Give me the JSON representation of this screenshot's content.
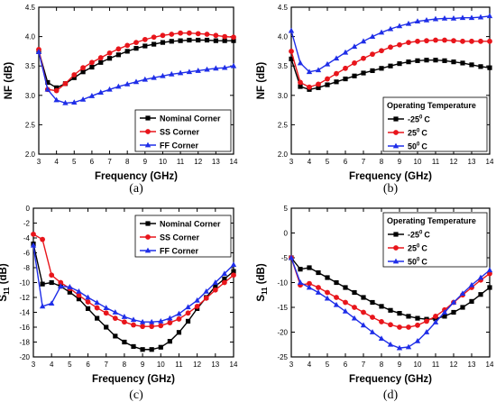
{
  "colors": {
    "black": "#000000",
    "red": "#e8151b",
    "blue": "#1f2ee8"
  },
  "chart_data": [
    {
      "panel": "(a)",
      "type": "line",
      "xlabel": "Frequency (GHz)",
      "ylabel": "NF (dB)",
      "xlim": [
        3,
        14
      ],
      "ylim": [
        2.0,
        4.5
      ],
      "xticks": [
        3,
        4,
        5,
        6,
        7,
        8,
        9,
        10,
        11,
        12,
        13,
        14
      ],
      "yticks": [
        "2.0",
        "2.5",
        "3.0",
        "3.5",
        "4.0",
        "4.5"
      ],
      "legend": {
        "placement": "lower-right",
        "title": "",
        "entries": [
          "Nominal Corner",
          "SS Corner",
          "FF Corner"
        ]
      },
      "series": [
        {
          "name": "Nominal Corner",
          "color": "#000000",
          "marker": "square",
          "x": [
            3,
            3.5,
            4,
            4.5,
            5,
            5.5,
            6,
            6.5,
            7,
            7.5,
            8,
            8.5,
            9,
            9.5,
            10,
            10.5,
            11,
            11.5,
            12,
            12.5,
            13,
            13.5,
            14
          ],
          "y": [
            3.75,
            3.22,
            3.13,
            3.2,
            3.3,
            3.4,
            3.48,
            3.56,
            3.63,
            3.69,
            3.75,
            3.8,
            3.84,
            3.87,
            3.9,
            3.92,
            3.93,
            3.94,
            3.94,
            3.94,
            3.93,
            3.93,
            3.93
          ]
        },
        {
          "name": "SS Corner",
          "color": "#e8151b",
          "marker": "circle",
          "x": [
            3,
            3.5,
            4,
            4.5,
            5,
            5.5,
            6,
            6.5,
            7,
            7.5,
            8,
            8.5,
            9,
            9.5,
            10,
            10.5,
            11,
            11.5,
            12,
            12.5,
            13,
            13.5,
            14
          ],
          "y": [
            3.78,
            3.1,
            3.08,
            3.2,
            3.35,
            3.47,
            3.56,
            3.64,
            3.72,
            3.79,
            3.85,
            3.9,
            3.95,
            3.99,
            4.02,
            4.04,
            4.06,
            4.06,
            4.05,
            4.04,
            4.02,
            4.0,
            3.99
          ]
        },
        {
          "name": "FF Corner",
          "color": "#1f2ee8",
          "marker": "triangle",
          "x": [
            3,
            3.5,
            4,
            4.5,
            5,
            5.5,
            6,
            6.5,
            7,
            7.5,
            8,
            8.5,
            9,
            9.5,
            10,
            10.5,
            11,
            11.5,
            12,
            12.5,
            13,
            13.5,
            14
          ],
          "y": [
            3.74,
            3.1,
            2.92,
            2.87,
            2.88,
            2.93,
            2.99,
            3.05,
            3.1,
            3.15,
            3.19,
            3.23,
            3.27,
            3.3,
            3.33,
            3.36,
            3.38,
            3.4,
            3.42,
            3.44,
            3.46,
            3.47,
            3.5
          ]
        }
      ]
    },
    {
      "panel": "(b)",
      "type": "line",
      "xlabel": "Frequency (GHz)",
      "ylabel": "NF (dB)",
      "xlim": [
        3,
        14
      ],
      "ylim": [
        2.0,
        4.5
      ],
      "xticks": [
        3,
        4,
        5,
        6,
        7,
        8,
        9,
        10,
        11,
        12,
        13,
        14
      ],
      "yticks": [
        "2.0",
        "2.5",
        "3.0",
        "3.5",
        "4.0",
        "4.5"
      ],
      "legend": {
        "placement": "lower-right",
        "title": "Operating Temperature",
        "entries": [
          "-25",
          "25",
          "50"
        ],
        "unit": "C",
        "superscript": "0"
      },
      "series": [
        {
          "name": "-25",
          "color": "#000000",
          "marker": "square",
          "x": [
            3,
            3.5,
            4,
            4.5,
            5,
            5.5,
            6,
            6.5,
            7,
            7.5,
            8,
            8.5,
            9,
            9.5,
            10,
            10.5,
            11,
            11.5,
            12,
            12.5,
            13,
            13.5,
            14
          ],
          "y": [
            3.62,
            3.15,
            3.1,
            3.13,
            3.18,
            3.23,
            3.28,
            3.33,
            3.38,
            3.42,
            3.46,
            3.5,
            3.54,
            3.57,
            3.59,
            3.6,
            3.6,
            3.59,
            3.57,
            3.55,
            3.52,
            3.49,
            3.47
          ]
        },
        {
          "name": "25",
          "color": "#e8151b",
          "marker": "circle",
          "x": [
            3,
            3.5,
            4,
            4.5,
            5,
            5.5,
            6,
            6.5,
            7,
            7.5,
            8,
            8.5,
            9,
            9.5,
            10,
            10.5,
            11,
            11.5,
            12,
            12.5,
            13,
            13.5,
            14
          ],
          "y": [
            3.75,
            3.22,
            3.14,
            3.19,
            3.28,
            3.37,
            3.46,
            3.55,
            3.63,
            3.7,
            3.76,
            3.82,
            3.86,
            3.9,
            3.92,
            3.93,
            3.94,
            3.94,
            3.93,
            3.92,
            3.92,
            3.92,
            3.92
          ]
        },
        {
          "name": "50",
          "color": "#1f2ee8",
          "marker": "triangle",
          "x": [
            3,
            3.5,
            4,
            4.5,
            5,
            5.5,
            6,
            6.5,
            7,
            7.5,
            8,
            8.5,
            9,
            9.5,
            10,
            10.5,
            11,
            11.5,
            12,
            12.5,
            13,
            13.5,
            14
          ],
          "y": [
            4.1,
            3.55,
            3.4,
            3.43,
            3.53,
            3.63,
            3.73,
            3.83,
            3.92,
            4.0,
            4.07,
            4.13,
            4.18,
            4.22,
            4.26,
            4.28,
            4.3,
            4.31,
            4.31,
            4.32,
            4.32,
            4.33,
            4.35
          ]
        }
      ]
    },
    {
      "panel": "(c)",
      "type": "line",
      "xlabel": "Frequency (GHz)",
      "ylabel": "S",
      "ylabel_sub": "11",
      "ylabel_rest": " (dB)",
      "xlim": [
        3,
        14
      ],
      "ylim": [
        -20,
        0
      ],
      "xticks": [
        3,
        4,
        5,
        6,
        7,
        8,
        9,
        10,
        11,
        12,
        13,
        14
      ],
      "yticks": [
        "0",
        "-2",
        "-4",
        "-6",
        "-8",
        "-10",
        "-12",
        "-14",
        "-16",
        "-18",
        "-20"
      ],
      "ytick_values": [
        0,
        -2,
        -4,
        -6,
        -8,
        -10,
        -12,
        -14,
        -16,
        -18,
        -20
      ],
      "legend": {
        "placement": "upper-right",
        "title": "",
        "entries": [
          "Nominal Corner",
          "SS Corner",
          "FF Corner"
        ]
      },
      "series": [
        {
          "name": "Nominal Corner",
          "color": "#000000",
          "marker": "square",
          "x": [
            3,
            3.5,
            4,
            4.5,
            5,
            5.5,
            6,
            6.5,
            7,
            7.5,
            8,
            8.5,
            9,
            9.5,
            10,
            10.5,
            11,
            11.5,
            12,
            12.5,
            13,
            13.5,
            14
          ],
          "y": [
            -4.8,
            -10.2,
            -10.0,
            -10.5,
            -11.3,
            -12.2,
            -13.5,
            -14.8,
            -16.0,
            -17.2,
            -18.0,
            -18.6,
            -19.0,
            -19.0,
            -18.7,
            -17.9,
            -16.7,
            -15.2,
            -13.5,
            -12.0,
            -10.5,
            -9.5,
            -8.5
          ]
        },
        {
          "name": "SS Corner",
          "color": "#e8151b",
          "marker": "circle",
          "x": [
            3,
            3.5,
            4,
            4.5,
            5,
            5.5,
            6,
            6.5,
            7,
            7.5,
            8,
            8.5,
            9,
            9.5,
            10,
            10.5,
            11,
            11.5,
            12,
            12.5,
            13,
            13.5,
            14
          ],
          "y": [
            -3.5,
            -4.2,
            -9.0,
            -10.0,
            -10.8,
            -11.7,
            -12.6,
            -13.4,
            -14.1,
            -14.8,
            -15.3,
            -15.7,
            -15.9,
            -15.9,
            -15.8,
            -15.4,
            -14.9,
            -14.1,
            -13.2,
            -12.1,
            -11.0,
            -10.0,
            -9.0
          ]
        },
        {
          "name": "FF Corner",
          "color": "#1f2ee8",
          "marker": "triangle",
          "x": [
            3,
            3.5,
            4,
            4.5,
            5,
            5.5,
            6,
            6.5,
            7,
            7.5,
            8,
            8.5,
            9,
            9.5,
            10,
            10.5,
            11,
            11.5,
            12,
            12.5,
            13,
            13.5,
            14
          ],
          "y": [
            -5.0,
            -13.2,
            -12.8,
            -10.5,
            -10.6,
            -11.2,
            -12.0,
            -12.7,
            -13.4,
            -14.0,
            -14.6,
            -15.0,
            -15.3,
            -15.3,
            -15.2,
            -14.8,
            -14.2,
            -13.3,
            -12.4,
            -11.2,
            -10.0,
            -8.8,
            -7.6
          ]
        }
      ]
    },
    {
      "panel": "(d)",
      "type": "line",
      "xlabel": "Frequency (GHz)",
      "ylabel": "S",
      "ylabel_sub": "11",
      "ylabel_rest": " (dB)",
      "xlim": [
        3,
        14
      ],
      "ylim": [
        -25,
        5
      ],
      "xticks": [
        3,
        4,
        5,
        6,
        7,
        8,
        9,
        10,
        11,
        12,
        13,
        14
      ],
      "yticks": [
        "5",
        "0",
        "-5",
        "-10",
        "-15",
        "-20",
        "-25"
      ],
      "ytick_values": [
        5,
        0,
        -5,
        -10,
        -15,
        -20,
        -25
      ],
      "legend": {
        "placement": "upper-right",
        "title": "Operating Temperature",
        "entries": [
          "-25",
          "25",
          "50"
        ],
        "unit": "C",
        "superscript": "0"
      },
      "series": [
        {
          "name": "-25",
          "color": "#000000",
          "marker": "square",
          "x": [
            3,
            3.5,
            4,
            4.5,
            5,
            5.5,
            6,
            6.5,
            7,
            7.5,
            8,
            8.5,
            9,
            9.5,
            10,
            10.5,
            11,
            11.5,
            12,
            12.5,
            13,
            13.5,
            14
          ],
          "y": [
            -5.0,
            -7.3,
            -7.0,
            -8.0,
            -9.0,
            -10.0,
            -11.0,
            -12.0,
            -13.0,
            -14.0,
            -14.8,
            -15.6,
            -16.2,
            -16.8,
            -17.2,
            -17.4,
            -17.3,
            -16.8,
            -16.0,
            -15.0,
            -13.8,
            -12.4,
            -11.0
          ]
        },
        {
          "name": "25",
          "color": "#e8151b",
          "marker": "circle",
          "x": [
            3,
            3.5,
            4,
            4.5,
            5,
            5.5,
            6,
            6.5,
            7,
            7.5,
            8,
            8.5,
            9,
            9.5,
            10,
            10.5,
            11,
            11.5,
            12,
            12.5,
            13,
            13.5,
            14
          ],
          "y": [
            -5.0,
            -10.5,
            -10.2,
            -11.0,
            -12.0,
            -13.0,
            -14.0,
            -15.0,
            -16.0,
            -17.0,
            -17.9,
            -18.5,
            -19.0,
            -19.0,
            -18.6,
            -17.8,
            -16.8,
            -15.5,
            -14.0,
            -12.5,
            -11.0,
            -9.5,
            -8.2
          ]
        },
        {
          "name": "50",
          "color": "#1f2ee8",
          "marker": "triangle",
          "x": [
            3,
            3.5,
            4,
            4.5,
            5,
            5.5,
            6,
            6.5,
            7,
            7.5,
            8,
            8.5,
            9,
            9.5,
            10,
            10.5,
            11,
            11.5,
            12,
            12.5,
            13,
            13.5,
            14
          ],
          "y": [
            -5.0,
            -10.0,
            -11.0,
            -12.0,
            -13.2,
            -14.5,
            -15.8,
            -17.2,
            -18.6,
            -20.0,
            -21.3,
            -22.5,
            -23.2,
            -23.0,
            -21.8,
            -20.0,
            -18.0,
            -16.0,
            -14.0,
            -12.2,
            -10.5,
            -9.0,
            -7.5
          ]
        }
      ]
    }
  ]
}
